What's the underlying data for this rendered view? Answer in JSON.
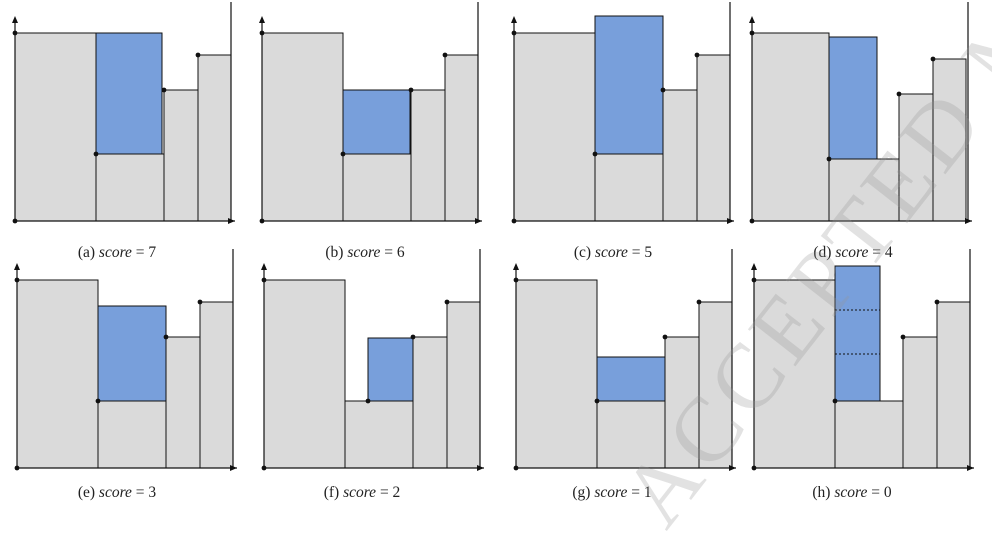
{
  "colors": {
    "box_fill": "#dadada",
    "placed_fill": "#789fdb",
    "line": "#111111"
  },
  "watermark": "ACCEPTED MANUSCRIPT",
  "panels": [
    {
      "label": "(a)",
      "score_word": "score",
      "eq": "= 7",
      "variant": "a"
    },
    {
      "label": "(b)",
      "score_word": "score",
      "eq": "= 6",
      "variant": "b"
    },
    {
      "label": "(c)",
      "score_word": "score",
      "eq": "= 5",
      "variant": "c"
    },
    {
      "label": "(d)",
      "score_word": "score",
      "eq": "= 4",
      "variant": "d"
    },
    {
      "label": "(e)",
      "score_word": "score",
      "eq": "= 3",
      "variant": "e"
    },
    {
      "label": "(f)",
      "score_word": "score",
      "eq": "= 2",
      "variant": "f"
    },
    {
      "label": "(g)",
      "score_word": "score",
      "eq": "= 1",
      "variant": "g"
    },
    {
      "label": "(h)",
      "score_word": "score",
      "eq": "= 0",
      "variant": "h"
    }
  ]
}
